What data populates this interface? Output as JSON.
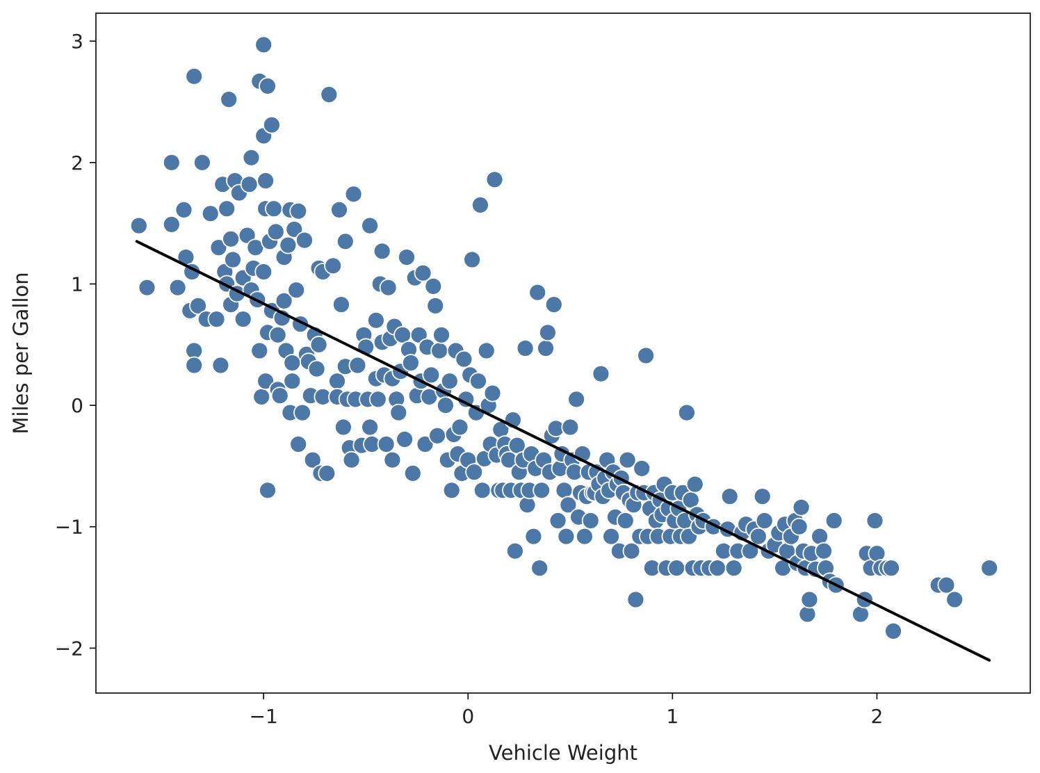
{
  "chart_data": {
    "type": "scatter",
    "title": "",
    "xlabel": "Vehicle Weight",
    "ylabel": "Miles per Gallon",
    "xlim": [
      -1.82,
      2.75
    ],
    "ylim": [
      -2.37,
      3.23
    ],
    "grid": false,
    "x_ticks": [
      -1,
      0,
      1,
      2
    ],
    "x_tick_labels": [
      "−1",
      "0",
      "1",
      "2"
    ],
    "y_ticks": [
      -2,
      -1,
      0,
      1,
      2,
      3
    ],
    "y_tick_labels": [
      "−2",
      "−1",
      "0",
      "1",
      "2",
      "3"
    ],
    "marker_color": "#4c78a8",
    "marker_edge": "#ffffff",
    "line_color": "#000000",
    "regression_line": {
      "x": [
        -1.62,
        2.55
      ],
      "y": [
        1.35,
        -2.1
      ]
    },
    "points": [
      [
        -1.61,
        1.48
      ],
      [
        -1.57,
        0.97
      ],
      [
        -1.45,
        2.0
      ],
      [
        -1.45,
        1.49
      ],
      [
        -1.42,
        0.97
      ],
      [
        -1.39,
        1.61
      ],
      [
        -1.38,
        1.22
      ],
      [
        -1.36,
        0.78
      ],
      [
        -1.35,
        1.1
      ],
      [
        -1.34,
        2.71
      ],
      [
        -1.34,
        0.45
      ],
      [
        -1.34,
        0.33
      ],
      [
        -1.32,
        0.82
      ],
      [
        -1.3,
        2.0
      ],
      [
        -1.28,
        0.71
      ],
      [
        -1.26,
        1.58
      ],
      [
        -1.23,
        0.71
      ],
      [
        -1.22,
        1.3
      ],
      [
        -1.21,
        0.33
      ],
      [
        -1.2,
        1.82
      ],
      [
        -1.19,
        1.1
      ],
      [
        -1.18,
        1.62
      ],
      [
        -1.18,
        1.0
      ],
      [
        -1.17,
        2.52
      ],
      [
        -1.16,
        1.37
      ],
      [
        -1.16,
        0.83
      ],
      [
        -1.15,
        1.2
      ],
      [
        -1.14,
        1.85
      ],
      [
        -1.13,
        0.92
      ],
      [
        -1.12,
        1.75
      ],
      [
        -1.1,
        1.05
      ],
      [
        -1.1,
        0.71
      ],
      [
        -1.08,
        1.4
      ],
      [
        -1.07,
        1.82
      ],
      [
        -1.06,
        0.95
      ],
      [
        -1.06,
        2.04
      ],
      [
        -1.05,
        1.13
      ],
      [
        -1.04,
        1.3
      ],
      [
        -1.03,
        0.87
      ],
      [
        -1.02,
        2.67
      ],
      [
        -1.02,
        0.45
      ],
      [
        -1.01,
        0.07
      ],
      [
        -1.0,
        2.97
      ],
      [
        -1.0,
        2.22
      ],
      [
        -1.0,
        1.1
      ],
      [
        -0.99,
        0.2
      ],
      [
        -0.99,
        1.62
      ],
      [
        -0.99,
        1.85
      ],
      [
        -0.98,
        0.6
      ],
      [
        -0.98,
        2.63
      ],
      [
        -0.98,
        -0.7
      ],
      [
        -0.97,
        1.35
      ],
      [
        -0.96,
        0.78
      ],
      [
        -0.96,
        2.31
      ],
      [
        -0.95,
        1.62
      ],
      [
        -0.94,
        1.43
      ],
      [
        -0.93,
        0.58
      ],
      [
        -0.93,
        0.13
      ],
      [
        -0.92,
        0.08
      ],
      [
        -0.91,
        0.72
      ],
      [
        -0.9,
        1.22
      ],
      [
        -0.9,
        0.86
      ],
      [
        -0.89,
        0.45
      ],
      [
        -0.88,
        1.32
      ],
      [
        -0.87,
        1.61
      ],
      [
        -0.87,
        -0.06
      ],
      [
        -0.86,
        0.35
      ],
      [
        -0.86,
        0.2
      ],
      [
        -0.85,
        1.45
      ],
      [
        -0.84,
        0.95
      ],
      [
        -0.83,
        -0.32
      ],
      [
        -0.83,
        1.6
      ],
      [
        -0.82,
        0.67
      ],
      [
        -0.81,
        -0.06
      ],
      [
        -0.8,
        1.36
      ],
      [
        -0.79,
        0.42
      ],
      [
        -0.78,
        0.36
      ],
      [
        -0.77,
        0.08
      ],
      [
        -0.76,
        -0.45
      ],
      [
        -0.75,
        0.58
      ],
      [
        -0.74,
        0.3
      ],
      [
        -0.73,
        1.13
      ],
      [
        -0.73,
        0.5
      ],
      [
        -0.72,
        -0.56
      ],
      [
        -0.71,
        1.1
      ],
      [
        -0.71,
        0.07
      ],
      [
        -0.69,
        -0.56
      ],
      [
        -0.68,
        2.56
      ],
      [
        -0.66,
        1.15
      ],
      [
        -0.64,
        0.2
      ],
      [
        -0.64,
        0.07
      ],
      [
        -0.63,
        1.61
      ],
      [
        -0.62,
        0.83
      ],
      [
        -0.61,
        -0.18
      ],
      [
        -0.6,
        1.35
      ],
      [
        -0.6,
        0.32
      ],
      [
        -0.59,
        0.05
      ],
      [
        -0.58,
        -0.35
      ],
      [
        -0.57,
        -0.45
      ],
      [
        -0.56,
        1.74
      ],
      [
        -0.55,
        0.05
      ],
      [
        -0.54,
        0.33
      ],
      [
        -0.52,
        -0.33
      ],
      [
        -0.51,
        0.58
      ],
      [
        -0.5,
        0.48
      ],
      [
        -0.49,
        0.05
      ],
      [
        -0.48,
        1.48
      ],
      [
        -0.48,
        -0.18
      ],
      [
        -0.47,
        -0.32
      ],
      [
        -0.45,
        0.7
      ],
      [
        -0.45,
        0.22
      ],
      [
        -0.44,
        0.05
      ],
      [
        -0.43,
        1.0
      ],
      [
        -0.42,
        1.27
      ],
      [
        -0.42,
        0.52
      ],
      [
        -0.41,
        0.25
      ],
      [
        -0.4,
        -0.32
      ],
      [
        -0.39,
        0.97
      ],
      [
        -0.38,
        0.55
      ],
      [
        -0.37,
        0.22
      ],
      [
        -0.37,
        -0.45
      ],
      [
        -0.36,
        0.65
      ],
      [
        -0.35,
        0.05
      ],
      [
        -0.34,
        -0.06
      ],
      [
        -0.33,
        0.28
      ],
      [
        -0.32,
        0.58
      ],
      [
        -0.31,
        -0.28
      ],
      [
        -0.3,
        1.22
      ],
      [
        -0.29,
        0.46
      ],
      [
        -0.28,
        0.35
      ],
      [
        -0.27,
        -0.56
      ],
      [
        -0.26,
        1.05
      ],
      [
        -0.25,
        0.08
      ],
      [
        -0.24,
        0.58
      ],
      [
        -0.23,
        0.2
      ],
      [
        -0.22,
        1.09
      ],
      [
        -0.21,
        -0.32
      ],
      [
        -0.2,
        0.48
      ],
      [
        -0.19,
        0.07
      ],
      [
        -0.18,
        0.25
      ],
      [
        -0.17,
        0.98
      ],
      [
        -0.16,
        0.82
      ],
      [
        -0.15,
        -0.25
      ],
      [
        -0.14,
        0.45
      ],
      [
        -0.13,
        0.58
      ],
      [
        -0.12,
        0.12
      ],
      [
        -0.11,
        0.0
      ],
      [
        -0.1,
        -0.45
      ],
      [
        -0.09,
        0.2
      ],
      [
        -0.08,
        -0.7
      ],
      [
        -0.07,
        -0.24
      ],
      [
        -0.06,
        0.45
      ],
      [
        -0.05,
        -0.4
      ],
      [
        -0.04,
        -0.18
      ],
      [
        -0.03,
        -0.56
      ],
      [
        -0.02,
        0.38
      ],
      [
        -0.01,
        0.05
      ],
      [
        0.0,
        -0.45
      ],
      [
        0.01,
        0.25
      ],
      [
        0.02,
        1.2
      ],
      [
        0.03,
        -0.55
      ],
      [
        0.04,
        -0.06
      ],
      [
        0.05,
        0.2
      ],
      [
        0.06,
        1.65
      ],
      [
        0.07,
        -0.7
      ],
      [
        0.08,
        -0.44
      ],
      [
        0.09,
        0.45
      ],
      [
        0.1,
        0.0
      ],
      [
        0.11,
        -0.32
      ],
      [
        0.12,
        0.1
      ],
      [
        0.13,
        1.86
      ],
      [
        0.14,
        -0.41
      ],
      [
        0.15,
        -0.7
      ],
      [
        0.16,
        -0.2
      ],
      [
        0.17,
        -0.7
      ],
      [
        0.18,
        -0.32
      ],
      [
        0.19,
        -0.4
      ],
      [
        0.2,
        -0.45
      ],
      [
        0.21,
        -0.7
      ],
      [
        0.22,
        -0.12
      ],
      [
        0.23,
        -1.2
      ],
      [
        0.24,
        -0.33
      ],
      [
        0.25,
        -0.55
      ],
      [
        0.26,
        -0.7
      ],
      [
        0.27,
        -0.45
      ],
      [
        0.28,
        0.47
      ],
      [
        0.29,
        -0.82
      ],
      [
        0.3,
        -0.7
      ],
      [
        0.31,
        -0.4
      ],
      [
        0.32,
        -1.08
      ],
      [
        0.33,
        -0.52
      ],
      [
        0.34,
        0.93
      ],
      [
        0.35,
        -1.34
      ],
      [
        0.36,
        -0.7
      ],
      [
        0.37,
        -0.45
      ],
      [
        0.38,
        0.47
      ],
      [
        0.39,
        0.6
      ],
      [
        0.4,
        -0.55
      ],
      [
        0.41,
        -0.25
      ],
      [
        0.42,
        0.83
      ],
      [
        0.43,
        -0.19
      ],
      [
        0.44,
        -0.95
      ],
      [
        0.45,
        -0.52
      ],
      [
        0.46,
        -0.4
      ],
      [
        0.47,
        -0.7
      ],
      [
        0.48,
        -1.08
      ],
      [
        0.49,
        -0.82
      ],
      [
        0.5,
        -0.18
      ],
      [
        0.51,
        -0.45
      ],
      [
        0.52,
        -0.55
      ],
      [
        0.53,
        0.05
      ],
      [
        0.54,
        -0.92
      ],
      [
        0.55,
        -0.72
      ],
      [
        0.56,
        -0.4
      ],
      [
        0.57,
        -1.08
      ],
      [
        0.58,
        -0.75
      ],
      [
        0.59,
        -0.55
      ],
      [
        0.6,
        -0.95
      ],
      [
        0.61,
        -0.72
      ],
      [
        0.62,
        -0.72
      ],
      [
        0.63,
        -0.55
      ],
      [
        0.64,
        -0.65
      ],
      [
        0.65,
        0.26
      ],
      [
        0.66,
        -0.75
      ],
      [
        0.67,
        -0.6
      ],
      [
        0.68,
        -0.45
      ],
      [
        0.69,
        -0.7
      ],
      [
        0.7,
        -1.08
      ],
      [
        0.71,
        -0.55
      ],
      [
        0.72,
        -0.92
      ],
      [
        0.73,
        -0.65
      ],
      [
        0.74,
        -1.2
      ],
      [
        0.75,
        -0.6
      ],
      [
        0.76,
        -0.72
      ],
      [
        0.77,
        -0.95
      ],
      [
        0.78,
        -0.45
      ],
      [
        0.79,
        -0.78
      ],
      [
        0.8,
        -1.2
      ],
      [
        0.81,
        -0.82
      ],
      [
        0.82,
        -1.6
      ],
      [
        0.83,
        -0.72
      ],
      [
        0.84,
        -1.08
      ],
      [
        0.85,
        -0.52
      ],
      [
        0.86,
        -0.72
      ],
      [
        0.87,
        0.41
      ],
      [
        0.88,
        -1.08
      ],
      [
        0.89,
        -0.85
      ],
      [
        0.9,
        -1.34
      ],
      [
        0.91,
        -0.72
      ],
      [
        0.92,
        -0.95
      ],
      [
        0.93,
        -1.08
      ],
      [
        0.94,
        -0.78
      ],
      [
        0.95,
        -0.9
      ],
      [
        0.96,
        -0.65
      ],
      [
        0.97,
        -1.34
      ],
      [
        0.98,
        -0.85
      ],
      [
        0.99,
        -1.08
      ],
      [
        1.0,
        -0.72
      ],
      [
        1.01,
        -0.95
      ],
      [
        1.02,
        -1.34
      ],
      [
        1.03,
        -0.85
      ],
      [
        1.04,
        -1.08
      ],
      [
        1.05,
        -0.72
      ],
      [
        1.06,
        -0.95
      ],
      [
        1.07,
        -0.06
      ],
      [
        1.08,
        -1.08
      ],
      [
        1.09,
        -0.78
      ],
      [
        1.1,
        -1.34
      ],
      [
        1.11,
        -0.65
      ],
      [
        1.12,
        -0.9
      ],
      [
        1.13,
        -1.0
      ],
      [
        1.14,
        -1.34
      ],
      [
        1.15,
        -0.95
      ],
      [
        1.18,
        -1.34
      ],
      [
        1.2,
        -1.0
      ],
      [
        1.22,
        -1.34
      ],
      [
        1.25,
        -1.2
      ],
      [
        1.27,
        -1.02
      ],
      [
        1.28,
        -0.75
      ],
      [
        1.3,
        -1.34
      ],
      [
        1.32,
        -1.2
      ],
      [
        1.34,
        -1.05
      ],
      [
        1.36,
        -0.98
      ],
      [
        1.38,
        -1.2
      ],
      [
        1.4,
        -1.02
      ],
      [
        1.42,
        -1.08
      ],
      [
        1.44,
        -0.75
      ],
      [
        1.45,
        -0.95
      ],
      [
        1.47,
        -1.2
      ],
      [
        1.5,
        -1.15
      ],
      [
        1.52,
        -1.05
      ],
      [
        1.54,
        -1.34
      ],
      [
        1.55,
        -0.98
      ],
      [
        1.56,
        -1.2
      ],
      [
        1.58,
        -1.08
      ],
      [
        1.6,
        -0.95
      ],
      [
        1.61,
        -1.3
      ],
      [
        1.62,
        -1.0
      ],
      [
        1.63,
        -0.84
      ],
      [
        1.64,
        -1.2
      ],
      [
        1.65,
        -1.34
      ],
      [
        1.66,
        -1.72
      ],
      [
        1.67,
        -1.6
      ],
      [
        1.68,
        -1.22
      ],
      [
        1.7,
        -1.35
      ],
      [
        1.72,
        -1.08
      ],
      [
        1.74,
        -1.2
      ],
      [
        1.75,
        -1.34
      ],
      [
        1.77,
        -1.45
      ],
      [
        1.79,
        -0.95
      ],
      [
        1.8,
        -1.48
      ],
      [
        1.92,
        -1.72
      ],
      [
        1.94,
        -1.6
      ],
      [
        1.95,
        -1.22
      ],
      [
        1.97,
        -1.34
      ],
      [
        1.99,
        -0.95
      ],
      [
        2.0,
        -1.22
      ],
      [
        2.02,
        -1.34
      ],
      [
        2.05,
        -1.34
      ],
      [
        2.07,
        -1.34
      ],
      [
        2.08,
        -1.86
      ],
      [
        2.3,
        -1.48
      ],
      [
        2.34,
        -1.48
      ],
      [
        2.38,
        -1.6
      ],
      [
        2.55,
        -1.34
      ]
    ]
  }
}
